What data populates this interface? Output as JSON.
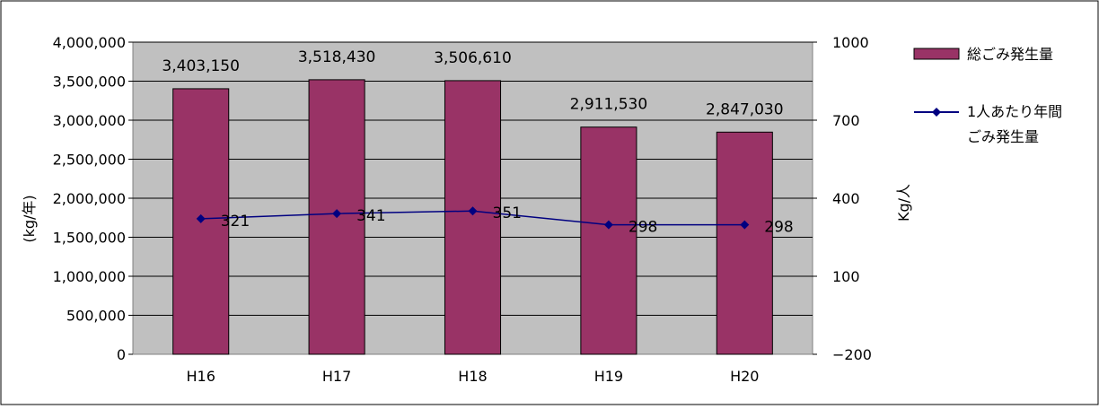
{
  "chart_data": {
    "type": "bar",
    "categories": [
      "H16",
      "H17",
      "H18",
      "H19",
      "H20"
    ],
    "series": [
      {
        "name": "総ごみ発生量",
        "type": "bar",
        "axis": "left",
        "values": [
          3403150,
          3518430,
          3506610,
          2911530,
          2847030
        ],
        "value_labels": [
          "3,403,150",
          "3,518,430",
          "3,506,610",
          "2,911,530",
          "2,847,030"
        ],
        "color": "#993366"
      },
      {
        "name": "1人あたり年間ごみ発生量",
        "legend_lines": [
          "1人あたり年間",
          "ごみ発生量"
        ],
        "type": "line",
        "axis": "right",
        "values": [
          321,
          341,
          351,
          298,
          298
        ],
        "value_labels": [
          "321",
          "341",
          "351",
          "298",
          "298"
        ],
        "color": "#000080"
      }
    ],
    "ylabel": "(kg/年)",
    "y2label": "Kg/人",
    "ylim": [
      0,
      4000000
    ],
    "y2lim": [
      -200,
      1000
    ],
    "y_ticks": [
      0,
      500000,
      1000000,
      1500000,
      2000000,
      2500000,
      3000000,
      3500000,
      4000000
    ],
    "y_tick_labels": [
      "0",
      "500,000",
      "1,000,000",
      "1,500,000",
      "2,000,000",
      "2,500,000",
      "3,000,000",
      "3,500,000",
      "4,000,000"
    ],
    "y2_ticks": [
      -200,
      100,
      400,
      700,
      1000
    ],
    "y2_tick_labels": [
      "−200",
      "100",
      "400",
      "700",
      "1000"
    ],
    "plot_background": "#c0c0c0",
    "grid": "horizontal",
    "legend_position": "right"
  }
}
